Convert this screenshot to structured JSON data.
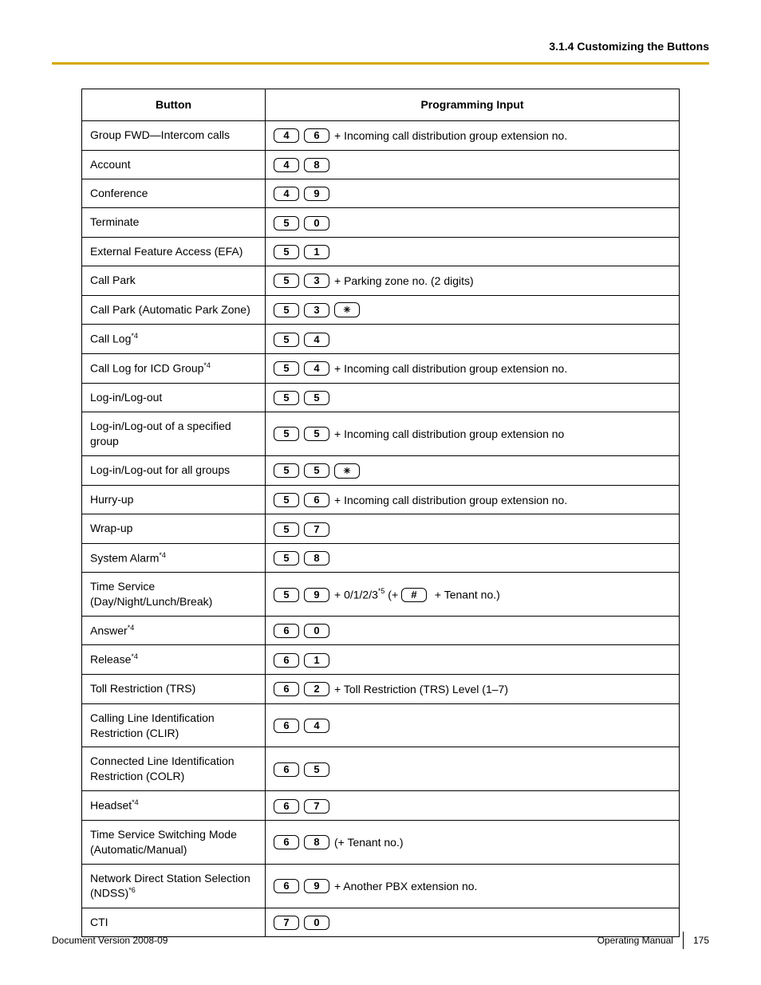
{
  "header": {
    "section_title": "3.1.4 Customizing the Buttons"
  },
  "table": {
    "col_headers": [
      "Button",
      "Programming Input"
    ],
    "rows": [
      {
        "button": "Group FWD—Intercom calls",
        "keys": [
          "4",
          "6"
        ],
        "suffix": "+ Incoming call distribution group extension no."
      },
      {
        "button": "Account",
        "keys": [
          "4",
          "8"
        ],
        "suffix": ""
      },
      {
        "button": "Conference",
        "keys": [
          "4",
          "9"
        ],
        "suffix": ""
      },
      {
        "button": "Terminate",
        "keys": [
          "5",
          "0"
        ],
        "suffix": ""
      },
      {
        "button": "External Feature Access (EFA)",
        "keys": [
          "5",
          "1"
        ],
        "suffix": ""
      },
      {
        "button": "Call Park",
        "keys": [
          "5",
          "3"
        ],
        "suffix": "+ Parking zone no. (2 digits)"
      },
      {
        "button": "Call Park (Automatic Park Zone)",
        "keys": [
          "5",
          "3",
          "*"
        ],
        "suffix": ""
      },
      {
        "button": "Call Log",
        "button_sup": "*4",
        "keys": [
          "5",
          "4"
        ],
        "suffix": ""
      },
      {
        "button": "Call Log for ICD Group",
        "button_sup": "*4",
        "keys": [
          "5",
          "4"
        ],
        "suffix": "+ Incoming call distribution group extension no."
      },
      {
        "button": "Log-in/Log-out",
        "keys": [
          "5",
          "5"
        ],
        "suffix": ""
      },
      {
        "button": "Log-in/Log-out of a specified group",
        "keys": [
          "5",
          "5"
        ],
        "suffix": "+ Incoming call distribution group extension no"
      },
      {
        "button": "Log-in/Log-out for all groups",
        "keys": [
          "5",
          "5",
          "*"
        ],
        "suffix": ""
      },
      {
        "button": "Hurry-up",
        "keys": [
          "5",
          "6"
        ],
        "suffix": "+ Incoming call distribution group extension no."
      },
      {
        "button": "Wrap-up",
        "keys": [
          "5",
          "7"
        ],
        "suffix": ""
      },
      {
        "button": "System Alarm",
        "button_sup": "*4",
        "keys": [
          "5",
          "8"
        ],
        "suffix": ""
      },
      {
        "button": "Time Service (Day/Night/Lunch/Break)",
        "keys": [
          "5",
          "9"
        ],
        "suffix_parts": [
          {
            "text": "+ 0/1/2/3"
          },
          {
            "sup": "*5"
          },
          {
            "text": " (+ "
          },
          {
            "key": "#"
          },
          {
            "text": " + Tenant no.)"
          }
        ]
      },
      {
        "button": "Answer",
        "button_sup": "*4",
        "keys": [
          "6",
          "0"
        ],
        "suffix": ""
      },
      {
        "button": "Release",
        "button_sup": "*4",
        "keys": [
          "6",
          "1"
        ],
        "suffix": ""
      },
      {
        "button": "Toll Restriction (TRS)",
        "keys": [
          "6",
          "2"
        ],
        "suffix": "+ Toll Restriction (TRS) Level (1–7)"
      },
      {
        "button": "Calling Line Identification Restriction (CLIR)",
        "keys": [
          "6",
          "4"
        ],
        "suffix": ""
      },
      {
        "button": "Connected Line Identification Restriction (COLR)",
        "keys": [
          "6",
          "5"
        ],
        "suffix": ""
      },
      {
        "button": "Headset",
        "button_sup": "*4",
        "keys": [
          "6",
          "7"
        ],
        "suffix": ""
      },
      {
        "button": "Time Service Switching Mode (Automatic/Manual)",
        "keys": [
          "6",
          "8"
        ],
        "suffix": "(+ Tenant no.)"
      },
      {
        "button": "Network Direct Station Selection (NDSS)",
        "button_sup": "*6",
        "keys": [
          "6",
          "9"
        ],
        "suffix": "+ Another PBX extension no."
      },
      {
        "button": "CTI",
        "keys": [
          "7",
          "0"
        ],
        "suffix": ""
      }
    ]
  },
  "footer": {
    "doc_version_label": "Document Version  2008-09",
    "manual_label": "Operating Manual",
    "page_no": "175"
  },
  "colors": {
    "gold": "#d6a800"
  }
}
